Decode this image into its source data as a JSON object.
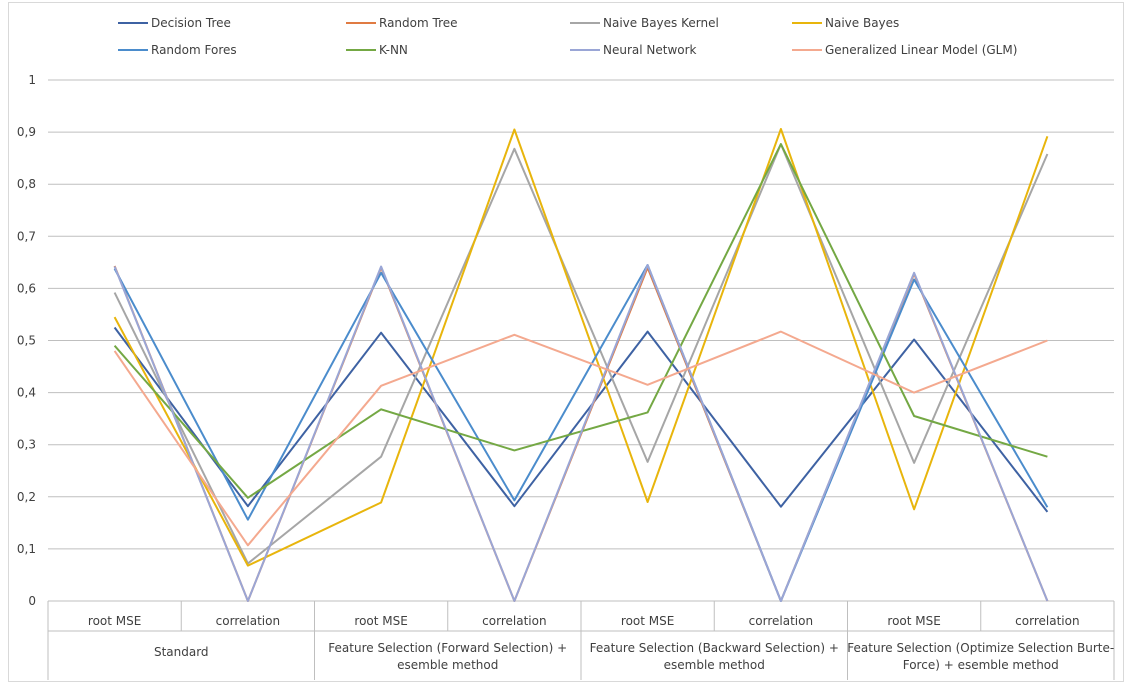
{
  "chart_data": {
    "type": "line",
    "title": "",
    "xlabel": "",
    "ylabel": "",
    "ylim": [
      0,
      1
    ],
    "y_ticks": [
      "0",
      "0,1",
      "0,2",
      "0,3",
      "0,4",
      "0,5",
      "0,6",
      "0,7",
      "0,8",
      "0,9",
      "1"
    ],
    "grid": true,
    "legend_position": "top",
    "categories": [
      "root MSE",
      "correlation",
      "root MSE",
      "correlation",
      "root MSE",
      "correlation",
      "root MSE",
      "correlation"
    ],
    "groups": [
      {
        "label_lines": [
          "Standard"
        ]
      },
      {
        "label_lines": [
          "Feature Selection (Forward Selection) +",
          "esemble method"
        ]
      },
      {
        "label_lines": [
          "Feature Selection (Backward Selection) +",
          "esemble method"
        ]
      },
      {
        "label_lines": [
          "Feature Selection (Optimize Selection Burte-",
          "Force) + esemble method"
        ]
      }
    ],
    "series": [
      {
        "name": "Decision Tree",
        "color": "#3e62a3",
        "values": [
          0.525,
          0.182,
          0.515,
          0.182,
          0.517,
          0.181,
          0.502,
          0.171
        ]
      },
      {
        "name": "Random Tree",
        "color": "#e07b43",
        "values": [
          0.643,
          0.0,
          0.64,
          0.0,
          0.64,
          0.0,
          0.628,
          0.0
        ]
      },
      {
        "name": "Naive Bayes Kernel",
        "color": "#a6a6a6",
        "values": [
          0.592,
          0.072,
          0.277,
          0.868,
          0.267,
          0.877,
          0.265,
          0.858
        ]
      },
      {
        "name": "Naive Bayes",
        "color": "#e8b50c",
        "values": [
          0.545,
          0.068,
          0.189,
          0.905,
          0.19,
          0.906,
          0.176,
          0.892
        ]
      },
      {
        "name": "Random Fores",
        "color": "#4b8ccc",
        "values": [
          0.638,
          0.156,
          0.63,
          0.193,
          0.645,
          0.0,
          0.617,
          0.18
        ]
      },
      {
        "name": "K-NN",
        "color": "#74a844",
        "values": [
          0.49,
          0.198,
          0.368,
          0.289,
          0.362,
          0.877,
          0.355,
          0.277
        ]
      },
      {
        "name": "Neural Network",
        "color": "#9aa6d6",
        "values": [
          0.642,
          0.0,
          0.642,
          0.0,
          0.645,
          0.0,
          0.63,
          0.0
        ]
      },
      {
        "name": "Generalized Linear Model (GLM)",
        "color": "#f4a98f",
        "values": [
          0.48,
          0.107,
          0.413,
          0.511,
          0.415,
          0.517,
          0.4,
          0.5
        ]
      }
    ]
  }
}
